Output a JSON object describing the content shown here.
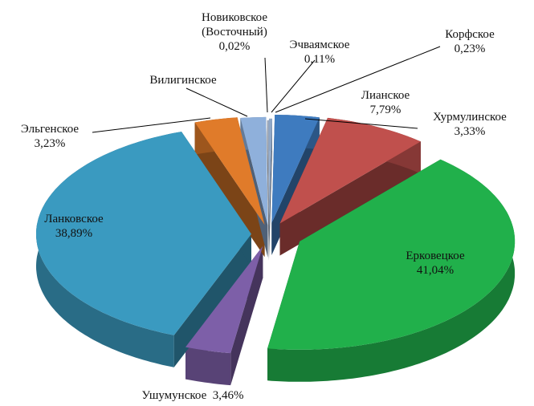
{
  "chart_data": {
    "type": "pie3d",
    "categories": [
      "Корфское",
      "Хурмулинское",
      "Лианское",
      "Ерковецкое",
      "Ушумунское",
      "Ланковское",
      "Эльгенское",
      "Вилигинское",
      "Новиковское (Восточный)",
      "Эчваямское"
    ],
    "values": [
      0.23,
      3.33,
      7.79,
      41.04,
      3.46,
      38.89,
      3.23,
      1.9,
      0.02,
      0.11
    ],
    "value_labels": [
      "0,23%",
      "3,33%",
      "7,79%",
      "41,04%",
      "3,46%",
      "38,89%",
      "3,23%",
      null,
      "0,02%",
      "0,11%"
    ],
    "colors": [
      "#8fa8c8",
      "#3e7bbf",
      "#c0504d",
      "#21b04b",
      "#7d5fa8",
      "#3a9ac0",
      "#e07b2a",
      "#8fb0db",
      "#b0b0b0",
      "#9aa9c0"
    ]
  }
}
